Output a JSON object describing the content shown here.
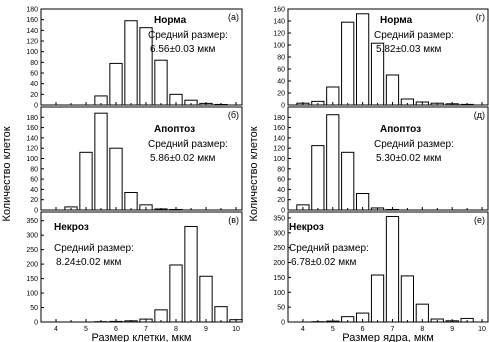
{
  "figure": {
    "y_label_shared": "Количество клеток",
    "mean_size_label": "Средний размер:"
  },
  "chart_data": [
    {
      "type": "bar",
      "column": "left",
      "letter": "(а)",
      "condition": "Норма",
      "mean_text": "6.56±0.03 мкм",
      "bin_centers": [
        5.0,
        5.5,
        6.0,
        6.5,
        7.0,
        7.5,
        8.0,
        8.5,
        9.0,
        9.5,
        10.0
      ],
      "values": [
        0,
        17,
        78,
        158,
        145,
        84,
        20,
        9,
        3,
        1,
        0
      ],
      "xlim": [
        3.5,
        10.2
      ],
      "ylim": [
        0,
        180
      ],
      "yticks": [
        0,
        20,
        40,
        60,
        80,
        100,
        120,
        140,
        160,
        180
      ]
    },
    {
      "type": "bar",
      "column": "left",
      "letter": "(б)",
      "condition": "Апоптоз",
      "mean_text": "5.86±0.02 мкм",
      "bin_centers": [
        4.5,
        5.0,
        5.5,
        6.0,
        6.5,
        7.0,
        7.5,
        8.0,
        8.5,
        9.0
      ],
      "values": [
        6,
        112,
        188,
        120,
        34,
        10,
        2,
        1,
        0,
        0
      ],
      "xlim": [
        3.5,
        10.2
      ],
      "ylim": [
        0,
        200
      ],
      "yticks": [
        0,
        20,
        40,
        60,
        80,
        100,
        120,
        140,
        160,
        180
      ]
    },
    {
      "type": "bar",
      "column": "left",
      "letter": "(в)",
      "condition": "Некроз",
      "mean_text": "8.24±0.02 мкм",
      "bin_centers": [
        5.5,
        6.0,
        6.5,
        7.0,
        7.5,
        8.0,
        8.5,
        9.0,
        9.5,
        10.0
      ],
      "values": [
        1,
        2,
        4,
        10,
        42,
        197,
        330,
        158,
        53,
        8
      ],
      "xlim": [
        3.5,
        10.2
      ],
      "ylim": [
        0,
        380
      ],
      "yticks": [
        0,
        50,
        100,
        150,
        200,
        250,
        300,
        350
      ],
      "xticks": [
        4,
        5,
        6,
        7,
        8,
        9,
        10
      ],
      "xlabel": "Размер клетки, мкм"
    },
    {
      "type": "bar",
      "column": "right",
      "letter": "(г)",
      "condition": "Норма",
      "mean_text": "5.82±0.03 мкм",
      "bin_centers": [
        4.0,
        4.5,
        5.0,
        5.5,
        6.0,
        6.5,
        7.0,
        7.5,
        8.0,
        8.5,
        9.0,
        9.5
      ],
      "values": [
        3,
        6,
        30,
        138,
        152,
        103,
        50,
        10,
        5,
        3,
        2,
        1
      ],
      "xlim": [
        3.5,
        10.2
      ],
      "ylim": [
        0,
        160
      ],
      "yticks": [
        0,
        20,
        40,
        60,
        80,
        100,
        120,
        140,
        160
      ]
    },
    {
      "type": "bar",
      "column": "right",
      "letter": "(д)",
      "condition": "Апоптоз",
      "mean_text": "5.30±0.02 мкм",
      "bin_centers": [
        4.0,
        4.5,
        5.0,
        5.5,
        6.0,
        6.5,
        7.0
      ],
      "values": [
        10,
        125,
        185,
        112,
        32,
        4,
        1
      ],
      "xlim": [
        3.5,
        10.2
      ],
      "ylim": [
        0,
        200
      ],
      "yticks": [
        0,
        20,
        40,
        60,
        80,
        100,
        120,
        140,
        160,
        180
      ]
    },
    {
      "type": "bar",
      "column": "right",
      "letter": "(е)",
      "condition": "Некроз",
      "mean_text": "6.78±0.02 мкм",
      "bin_centers": [
        4.5,
        5.0,
        5.5,
        6.0,
        6.5,
        7.0,
        7.5,
        8.0,
        8.5,
        9.0,
        9.5
      ],
      "values": [
        1,
        3,
        18,
        30,
        158,
        355,
        155,
        60,
        10,
        4,
        12
      ],
      "xlim": [
        3.5,
        10.2
      ],
      "ylim": [
        0,
        370
      ],
      "yticks": [
        0,
        50,
        100,
        150,
        200,
        250,
        300,
        350
      ],
      "xticks": [
        4,
        5,
        6,
        7,
        8,
        9,
        10
      ],
      "xlabel": "Размер ядра, мкм"
    }
  ]
}
